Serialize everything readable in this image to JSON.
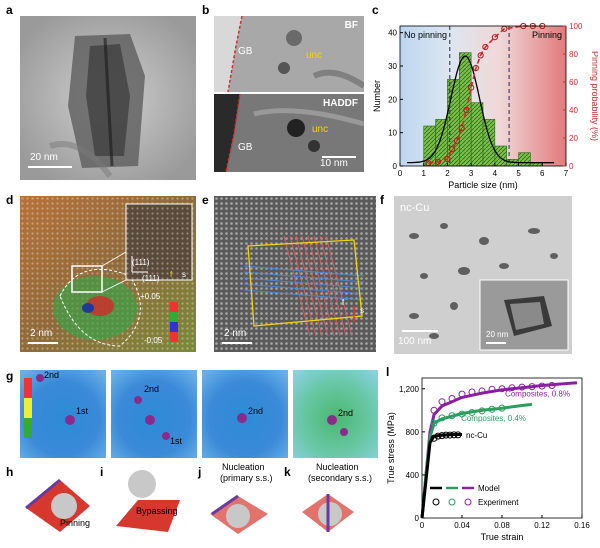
{
  "panels": {
    "a": {
      "label": "a",
      "scale": "20 nm"
    },
    "b": {
      "label": "b",
      "top_mode": "BF",
      "bottom_mode": "HADDF",
      "gb_top": "GB",
      "gb_bottom": "GB",
      "unc_top": "unc",
      "unc_bottom": "unc",
      "scale": "10 nm"
    },
    "c": {
      "label": "c",
      "left_region": "No pinning",
      "right_region": "Pinning"
    },
    "d": {
      "label": "d",
      "scale": "2 nm",
      "inset_dir_left": "(111)",
      "inset_dir_bottom": "(111)",
      "inset_f": "f",
      "inset_s": "s",
      "cbar_max": "+0.05",
      "cbar_min": "-0.05"
    },
    "e": {
      "label": "e",
      "scale": "2 nm",
      "burgers_f": "f",
      "burgers_s": "s"
    },
    "f": {
      "label": "f",
      "title": "nc-Cu",
      "scale": "100 nm",
      "inset_scale": "20 nm"
    },
    "g": {
      "label": "g",
      "n1": "2nd",
      "n2": "1st",
      "n3": "2nd",
      "n4": "1st",
      "n5": "2nd",
      "n6": "2nd"
    },
    "h": {
      "label": "h",
      "text": "Pinning"
    },
    "i": {
      "label": "i",
      "text": "Bypassing"
    },
    "j": {
      "label": "j",
      "text1": "Nucleation",
      "text2": "(primary s.s.)"
    },
    "k": {
      "label": "k",
      "text1": "Nucleation",
      "text2": "(secondary s.s.)"
    },
    "l": {
      "label": "l"
    }
  },
  "chart_data": [
    {
      "type": "bar",
      "panel": "c",
      "xlabel": "Particle size (nm)",
      "ylabel": "Number",
      "y2label": "Pinning probability (%)",
      "xlim": [
        0,
        7
      ],
      "ylim": [
        0,
        42
      ],
      "y2lim": [
        0,
        100
      ],
      "xticks": [
        "0",
        "1",
        "2",
        "3",
        "4",
        "5",
        "6",
        "7"
      ],
      "yticks": [
        "0",
        "10",
        "20",
        "30",
        "40"
      ],
      "y2ticks": [
        "0",
        "20",
        "40",
        "60",
        "80",
        "100"
      ],
      "vlines": [
        2.1,
        4.6
      ],
      "bars": {
        "x": [
          1.25,
          1.75,
          2.25,
          2.75,
          3.25,
          3.75,
          4.25,
          4.75,
          5.25,
          5.75
        ],
        "values": [
          12,
          14,
          26,
          34,
          19,
          14,
          6,
          2,
          4,
          1
        ]
      },
      "fit_curve": {
        "center": 2.75,
        "amplitude": 32,
        "sigma": 0.6
      },
      "pinning_probability": {
        "x": [
          1.2,
          1.6,
          2.0,
          2.2,
          2.4,
          2.6,
          2.8,
          3.0,
          3.2,
          3.4,
          3.6,
          4.0,
          4.4,
          5.2,
          5.6,
          6.0
        ],
        "values": [
          2,
          3,
          5,
          12,
          18,
          27,
          40,
          56,
          70,
          79,
          85,
          92,
          98,
          100,
          100,
          100
        ]
      }
    },
    {
      "type": "line",
      "panel": "l",
      "xlabel": "True strain",
      "ylabel": "True stress (MPa)",
      "xlim": [
        0,
        0.16
      ],
      "ylim": [
        0,
        1300
      ],
      "xticks": [
        "0",
        "0.04",
        "0.08",
        "0.12",
        "0.16"
      ],
      "yticks": [
        "0",
        "400",
        "800",
        "1,200"
      ],
      "legend": {
        "model": "Model",
        "experiment": "Experiment"
      },
      "series": [
        {
          "name": "Composites, 0.8%",
          "color": "#8b1fa3",
          "model": {
            "x": [
              0,
              0.004,
              0.008,
              0.012,
              0.02,
              0.04,
              0.06,
              0.08,
              0.1,
              0.12,
              0.14,
              0.155
            ],
            "values": [
              0,
              400,
              800,
              960,
              1040,
              1120,
              1160,
              1190,
              1210,
              1230,
              1245,
              1255
            ]
          },
          "exp": {
            "x": [
              0.012,
              0.02,
              0.03,
              0.04,
              0.05,
              0.06,
              0.07,
              0.08,
              0.09,
              0.1,
              0.11,
              0.12,
              0.13
            ],
            "values": [
              1000,
              1080,
              1110,
              1150,
              1170,
              1180,
              1195,
              1200,
              1210,
              1215,
              1220,
              1225,
              1230
            ]
          }
        },
        {
          "name": "Composites, 0.4%",
          "color": "#2a9d5f",
          "model": {
            "x": [
              0,
              0.004,
              0.008,
              0.012,
              0.02,
              0.04,
              0.06,
              0.08,
              0.1,
              0.11
            ],
            "values": [
              0,
              400,
              750,
              880,
              920,
              970,
              1000,
              1020,
              1045,
              1055
            ]
          },
          "exp": {
            "x": [
              0.012,
              0.02,
              0.03,
              0.04,
              0.05,
              0.06,
              0.07,
              0.08
            ],
            "values": [
              880,
              930,
              950,
              965,
              980,
              995,
              1010,
              1020
            ]
          }
        },
        {
          "name": "nc-Cu",
          "color": "#000000",
          "model": {
            "x": [
              0,
              0.004,
              0.008,
              0.012,
              0.02,
              0.03,
              0.04
            ],
            "values": [
              0,
              350,
              700,
              760,
              770,
              775,
              775
            ]
          },
          "exp": {
            "x": [
              0.012,
              0.016,
              0.02,
              0.024,
              0.028,
              0.032,
              0.036
            ],
            "values": [
              740,
              760,
              765,
              770,
              770,
              772,
              772
            ]
          }
        }
      ]
    }
  ]
}
